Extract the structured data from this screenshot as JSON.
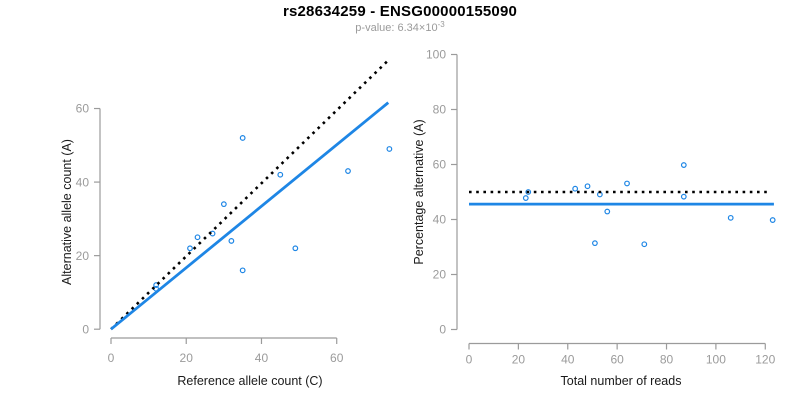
{
  "header": {
    "title": "rs28634259 - ENSG00000155090",
    "subtitle_prefix": "p-value: 6.34×10",
    "subtitle_exponent": "-3"
  },
  "colors": {
    "accent_blue": "#1E86E5",
    "dotted_line_black": "#000000",
    "axis_gray": "#9b9b9b",
    "axis_title_dark": "#1a1a1a",
    "subtitle_gray": "#9a9a9a",
    "background": "#ffffff"
  },
  "chart_data": [
    {
      "type": "scatter",
      "name": "allele-counts-scatter",
      "xlabel": "Reference allele count (C)",
      "ylabel": "Alternative allele count (A)",
      "xlim": [
        0,
        75
      ],
      "ylim": [
        0,
        62
      ],
      "xticks": [
        0,
        20,
        40,
        60
      ],
      "yticks": [
        0,
        20,
        40,
        60
      ],
      "grid": false,
      "legend": false,
      "points": [
        [
          12,
          11
        ],
        [
          12,
          12
        ],
        [
          21,
          22
        ],
        [
          23,
          25
        ],
        [
          27,
          26
        ],
        [
          30,
          34
        ],
        [
          32,
          24
        ],
        [
          35,
          16
        ],
        [
          35,
          52
        ],
        [
          45,
          42
        ],
        [
          49,
          22
        ],
        [
          63,
          43
        ],
        [
          74,
          49
        ]
      ],
      "lines": [
        {
          "name": "identity-line",
          "style": "dotted",
          "color": "black",
          "x1": 0,
          "y1": 0,
          "x2": 74,
          "y2": 73.4
        },
        {
          "name": "fit-line",
          "style": "solid",
          "color": "blue",
          "x1": 0,
          "y1": 0,
          "x2": 73.7,
          "y2": 61.6
        }
      ]
    },
    {
      "type": "scatter",
      "name": "percentage-alternative-scatter",
      "xlabel": "Total number of reads",
      "ylabel": "Percentage alternative (A)",
      "xlim": [
        0,
        124
      ],
      "ylim": [
        0,
        104
      ],
      "xticks": [
        0,
        20,
        40,
        60,
        80,
        100,
        120
      ],
      "yticks": [
        0,
        20,
        40,
        60,
        80,
        100
      ],
      "grid": false,
      "legend": false,
      "points": [
        [
          23,
          47.8
        ],
        [
          24,
          50.0
        ],
        [
          43,
          51.2
        ],
        [
          48,
          52.1
        ],
        [
          51,
          31.4
        ],
        [
          53,
          49.1
        ],
        [
          56,
          42.9
        ],
        [
          64,
          53.1
        ],
        [
          71,
          31.0
        ],
        [
          87,
          59.8
        ],
        [
          87,
          48.3
        ],
        [
          106,
          40.6
        ],
        [
          123,
          39.8
        ]
      ],
      "lines": [
        {
          "name": "expected-50pct-line",
          "style": "dotted",
          "color": "black",
          "x1": 0,
          "y1": 50,
          "x2": 121.6,
          "y2": 50
        },
        {
          "name": "fit-line",
          "style": "solid",
          "color": "blue",
          "x1": 0,
          "y1": 45.6,
          "x2": 123.5,
          "y2": 45.6
        }
      ]
    }
  ]
}
